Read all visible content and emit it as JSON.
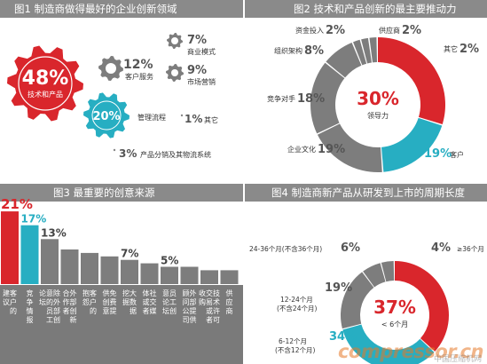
{
  "colors": {
    "red": "#d9262c",
    "teal": "#27aec2",
    "gray": "#7d7d7d",
    "lightgray": "#bdbdbd",
    "header": "#8a8a8a"
  },
  "panel1": {
    "title": "图1  制造商做得最好的企业创新领域",
    "items": [
      {
        "name": "技术和产品",
        "value": "48%"
      },
      {
        "name": "客户服务",
        "value": "12%"
      },
      {
        "name": "商业模式",
        "value": "7%"
      },
      {
        "name": "市场营销",
        "value": "9%"
      },
      {
        "name": "管理流程",
        "value": "20%"
      },
      {
        "name": "其它",
        "value": "1%"
      },
      {
        "name": "产品分销及其物流系统",
        "value": "3%"
      }
    ]
  },
  "panel2": {
    "title": "图2  技术和产品创新的最主要推动力",
    "center_value": "30%",
    "center_label": "领导力"
  },
  "panel3": {
    "title": "图3  最重要的创意来源"
  },
  "panel4": {
    "title": "图4  制造商新产品从研发到上市的周期长度",
    "center_value": "37%",
    "center_label": "< 6个月"
  },
  "watermark": {
    "main": "compressor.cn",
    "sub": "中国压缩机网"
  },
  "chart_data": [
    {
      "type": "pie",
      "title": "图1  制造商做得最好的企业创新领域",
      "labels": [
        "技术和产品",
        "管理流程",
        "客户服务",
        "市场营销",
        "商业模式",
        "产品分销及其物流系统",
        "其它"
      ],
      "values": [
        48,
        20,
        12,
        9,
        7,
        3,
        1
      ]
    },
    {
      "type": "pie",
      "title": "图2  技术和产品创新的最主要推动力",
      "slices": [
        {
          "label": "领导力",
          "value": 30,
          "color": "#d9262c"
        },
        {
          "label": "客户",
          "value": 19,
          "color": "#27aec2"
        },
        {
          "label": "企业文化",
          "value": 19,
          "color": "#7d7d7d"
        },
        {
          "label": "竞争对手",
          "value": 18,
          "color": "#7d7d7d"
        },
        {
          "label": "组织架构",
          "value": 8,
          "color": "#7d7d7d"
        },
        {
          "label": "资金投入",
          "value": 2,
          "color": "#7d7d7d"
        },
        {
          "label": "供应商",
          "value": 2,
          "color": "#7d7d7d"
        },
        {
          "label": "其它",
          "value": 2,
          "color": "#7d7d7d"
        }
      ]
    },
    {
      "type": "bar",
      "title": "图3  最重要的创意来源",
      "categories": [
        "客户的建议",
        "竞争情报",
        "除外部创意的员工论坛",
        "外部创新合作者",
        "客户的抱怨",
        "免费提供创意",
        "大数据挖掘",
        "社交媒体或者",
        "员工创意论坛",
        "外部提供顾问公司",
        "技术许可交易或者收购",
        "供应商"
      ],
      "values": [
        21,
        17,
        13,
        10,
        9,
        8,
        7,
        6,
        5,
        5,
        4,
        4
      ],
      "value_labels": [
        "21%",
        "17%",
        "13%",
        "",
        "",
        "",
        "7%",
        "",
        "5%",
        "",
        "",
        ""
      ],
      "colors": [
        "#d9262c",
        "#27aec2",
        "#7d7d7d",
        "#7d7d7d",
        "#7d7d7d",
        "#7d7d7d",
        "#7d7d7d",
        "#7d7d7d",
        "#7d7d7d",
        "#7d7d7d",
        "#7d7d7d",
        "#7d7d7d"
      ]
    },
    {
      "type": "pie",
      "title": "图4  制造商新产品从研发到上市的周期长度",
      "slices": [
        {
          "label": "< 6个月",
          "value": 37,
          "color": "#d9262c"
        },
        {
          "label": "6-12个月\n(不含12个月)",
          "value": 34,
          "color": "#27aec2"
        },
        {
          "label": "12-24个月\n(不含24个月)",
          "value": 19,
          "color": "#7d7d7d"
        },
        {
          "label": "24-36个月(不含36个月)",
          "value": 6,
          "color": "#7d7d7d"
        },
        {
          "label": "≥36个月",
          "value": 4,
          "color": "#7d7d7d"
        }
      ]
    }
  ]
}
